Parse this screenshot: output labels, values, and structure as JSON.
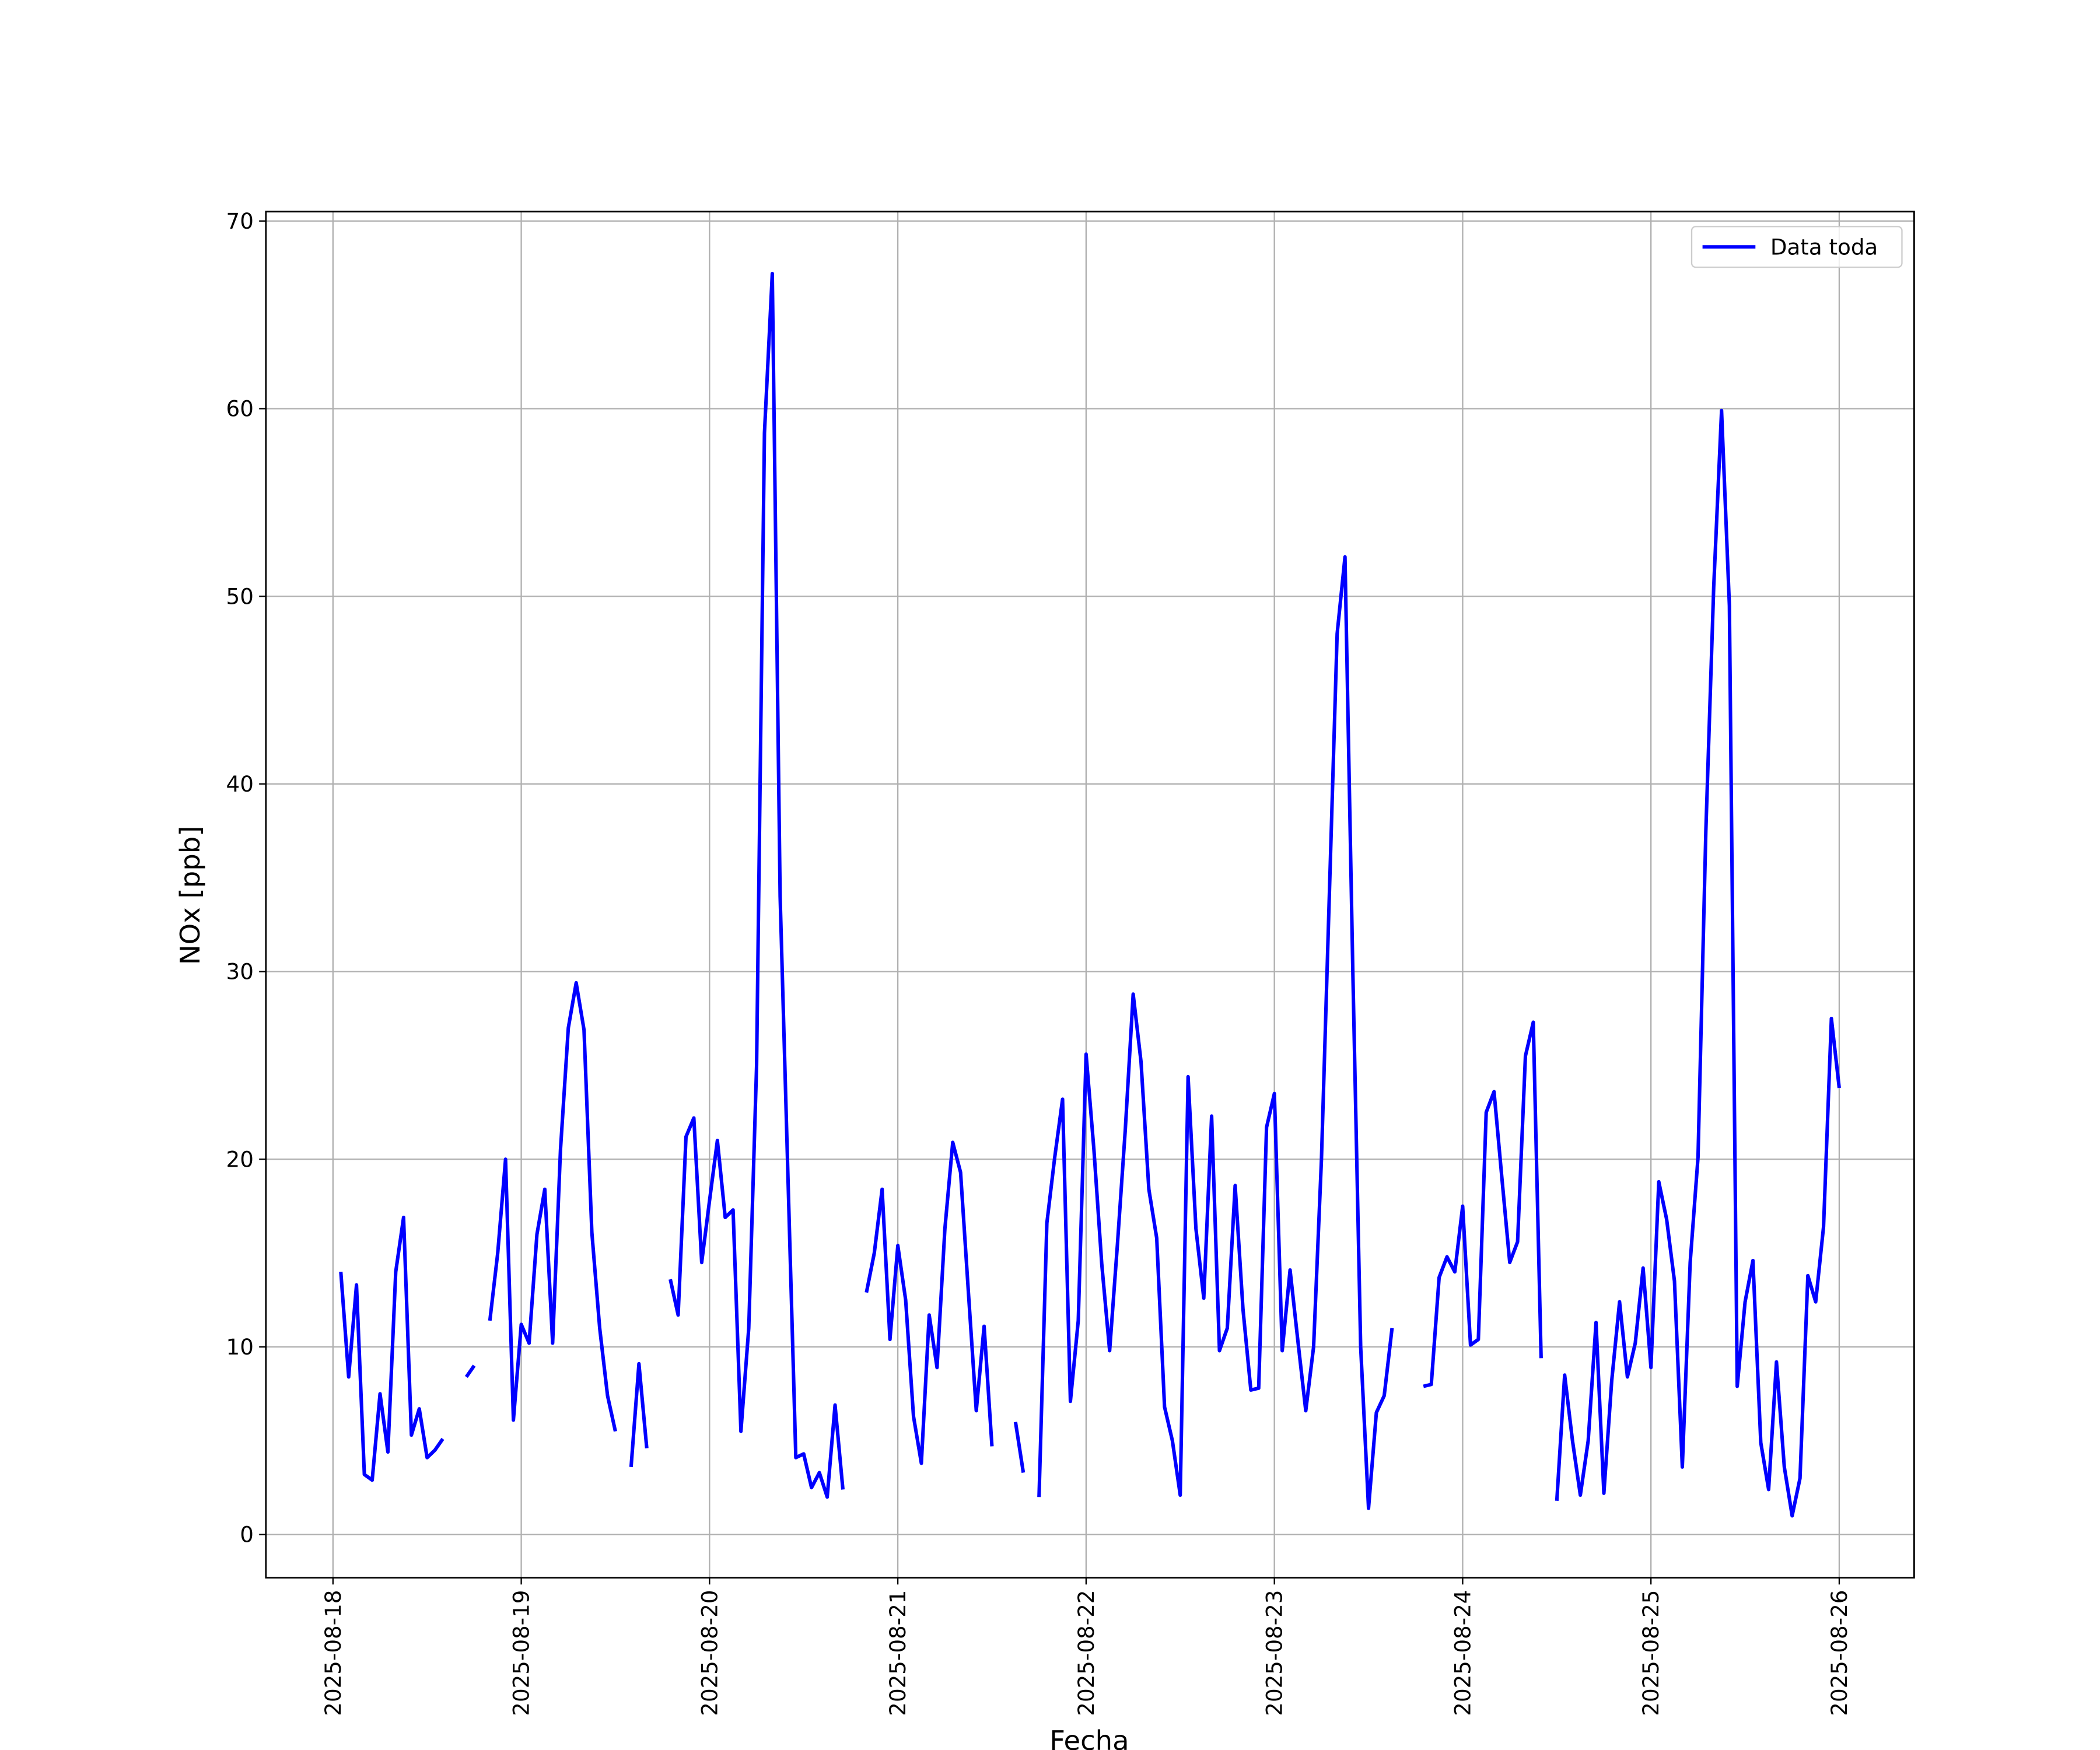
{
  "chart_data": {
    "type": "line",
    "xlabel": "Fecha",
    "ylabel": "NOx [ppb]",
    "x": [
      "2025-08-18T01:00",
      "2025-08-18T02:00",
      "2025-08-18T03:00",
      "2025-08-18T04:00",
      "2025-08-18T05:00",
      "2025-08-18T06:00",
      "2025-08-18T07:00",
      "2025-08-18T08:00",
      "2025-08-18T09:00",
      "2025-08-18T10:00",
      "2025-08-18T11:00",
      "2025-08-18T12:00",
      "2025-08-18T13:00",
      "2025-08-18T14:00",
      "2025-08-18T15:00",
      "2025-08-18T16:00",
      "2025-08-18T17:00",
      "2025-08-18T18:00",
      "2025-08-18T19:00",
      "2025-08-18T20:00",
      "2025-08-18T21:00",
      "2025-08-18T22:00",
      "2025-08-18T23:00",
      "2025-08-19T00:00",
      "2025-08-19T01:00",
      "2025-08-19T02:00",
      "2025-08-19T03:00",
      "2025-08-19T04:00",
      "2025-08-19T05:00",
      "2025-08-19T06:00",
      "2025-08-19T07:00",
      "2025-08-19T08:00",
      "2025-08-19T09:00",
      "2025-08-19T10:00",
      "2025-08-19T11:00",
      "2025-08-19T12:00",
      "2025-08-19T13:00",
      "2025-08-19T14:00",
      "2025-08-19T15:00",
      "2025-08-19T16:00",
      "2025-08-19T17:00",
      "2025-08-19T18:00",
      "2025-08-19T19:00",
      "2025-08-19T20:00",
      "2025-08-19T21:00",
      "2025-08-19T22:00",
      "2025-08-19T23:00",
      "2025-08-20T00:00",
      "2025-08-20T01:00",
      "2025-08-20T02:00",
      "2025-08-20T03:00",
      "2025-08-20T04:00",
      "2025-08-20T05:00",
      "2025-08-20T06:00",
      "2025-08-20T07:00",
      "2025-08-20T08:00",
      "2025-08-20T09:00",
      "2025-08-20T10:00",
      "2025-08-20T11:00",
      "2025-08-20T12:00",
      "2025-08-20T13:00",
      "2025-08-20T14:00",
      "2025-08-20T15:00",
      "2025-08-20T16:00",
      "2025-08-20T17:00",
      "2025-08-20T18:00",
      "2025-08-20T19:00",
      "2025-08-20T20:00",
      "2025-08-20T21:00",
      "2025-08-20T22:00",
      "2025-08-20T23:00",
      "2025-08-21T00:00",
      "2025-08-21T01:00",
      "2025-08-21T02:00",
      "2025-08-21T03:00",
      "2025-08-21T04:00",
      "2025-08-21T05:00",
      "2025-08-21T06:00",
      "2025-08-21T07:00",
      "2025-08-21T08:00",
      "2025-08-21T09:00",
      "2025-08-21T10:00",
      "2025-08-21T11:00",
      "2025-08-21T12:00",
      "2025-08-21T13:00",
      "2025-08-21T14:00",
      "2025-08-21T15:00",
      "2025-08-21T16:00",
      "2025-08-21T17:00",
      "2025-08-21T18:00",
      "2025-08-21T19:00",
      "2025-08-21T20:00",
      "2025-08-21T21:00",
      "2025-08-21T22:00",
      "2025-08-21T23:00",
      "2025-08-22T00:00",
      "2025-08-22T01:00",
      "2025-08-22T02:00",
      "2025-08-22T03:00",
      "2025-08-22T04:00",
      "2025-08-22T05:00",
      "2025-08-22T06:00",
      "2025-08-22T07:00",
      "2025-08-22T08:00",
      "2025-08-22T09:00",
      "2025-08-22T10:00",
      "2025-08-22T11:00",
      "2025-08-22T12:00",
      "2025-08-22T13:00",
      "2025-08-22T14:00",
      "2025-08-22T15:00",
      "2025-08-22T16:00",
      "2025-08-22T17:00",
      "2025-08-22T18:00",
      "2025-08-22T19:00",
      "2025-08-22T20:00",
      "2025-08-22T21:00",
      "2025-08-22T22:00",
      "2025-08-22T23:00",
      "2025-08-23T00:00",
      "2025-08-23T01:00",
      "2025-08-23T02:00",
      "2025-08-23T03:00",
      "2025-08-23T04:00",
      "2025-08-23T05:00",
      "2025-08-23T06:00",
      "2025-08-23T07:00",
      "2025-08-23T08:00",
      "2025-08-23T09:00",
      "2025-08-23T10:00",
      "2025-08-23T11:00",
      "2025-08-23T12:00",
      "2025-08-23T13:00",
      "2025-08-23T14:00",
      "2025-08-23T15:00",
      "2025-08-23T16:00",
      "2025-08-23T17:00",
      "2025-08-23T18:00",
      "2025-08-23T19:00",
      "2025-08-23T20:00",
      "2025-08-23T21:00",
      "2025-08-23T22:00",
      "2025-08-23T23:00",
      "2025-08-24T00:00",
      "2025-08-24T01:00",
      "2025-08-24T02:00",
      "2025-08-24T03:00",
      "2025-08-24T04:00",
      "2025-08-24T05:00",
      "2025-08-24T06:00",
      "2025-08-24T07:00",
      "2025-08-24T08:00",
      "2025-08-24T09:00",
      "2025-08-24T10:00",
      "2025-08-24T11:00",
      "2025-08-24T12:00",
      "2025-08-24T13:00",
      "2025-08-24T14:00",
      "2025-08-24T15:00",
      "2025-08-24T16:00",
      "2025-08-24T17:00",
      "2025-08-24T18:00",
      "2025-08-24T19:00",
      "2025-08-24T20:00",
      "2025-08-24T21:00",
      "2025-08-24T22:00",
      "2025-08-24T23:00",
      "2025-08-25T00:00",
      "2025-08-25T01:00",
      "2025-08-25T02:00",
      "2025-08-25T03:00",
      "2025-08-25T04:00",
      "2025-08-25T05:00",
      "2025-08-25T06:00",
      "2025-08-25T07:00",
      "2025-08-25T08:00",
      "2025-08-25T09:00",
      "2025-08-25T10:00",
      "2025-08-25T11:00",
      "2025-08-25T12:00",
      "2025-08-25T13:00",
      "2025-08-25T14:00",
      "2025-08-25T15:00",
      "2025-08-25T16:00",
      "2025-08-25T17:00",
      "2025-08-25T18:00",
      "2025-08-25T19:00",
      "2025-08-25T20:00",
      "2025-08-25T21:00",
      "2025-08-25T22:00",
      "2025-08-25T23:00",
      "2025-08-26T00:00"
    ],
    "series": [
      {
        "name": "Data toda",
        "color": "#0000ff",
        "values": [
          14.0,
          8.4,
          13.3,
          3.2,
          2.9,
          7.5,
          4.4,
          14.0,
          16.9,
          5.3,
          6.7,
          4.1,
          4.5,
          5.1,
          null,
          null,
          8.4,
          9.0,
          null,
          11.4,
          15.0,
          20.0,
          6.1,
          11.2,
          10.2,
          16.0,
          18.4,
          10.2,
          20.5,
          27.0,
          29.4,
          26.9,
          16.1,
          11.0,
          7.4,
          5.5,
          null,
          3.6,
          9.1,
          4.6,
          null,
          null,
          13.6,
          11.7,
          21.2,
          22.2,
          14.5,
          17.8,
          21.0,
          16.9,
          17.3,
          5.5,
          11.0,
          25.0,
          58.7,
          67.2,
          34.0,
          19.0,
          4.1,
          4.3,
          2.5,
          3.3,
          2.0,
          6.9,
          2.4,
          null,
          null,
          12.9,
          15.0,
          18.4,
          10.4,
          15.4,
          12.5,
          6.3,
          3.8,
          11.7,
          8.9,
          16.3,
          20.9,
          19.3,
          12.9,
          6.6,
          11.1,
          4.7,
          null,
          null,
          6.0,
          3.3,
          null,
          2.0,
          16.6,
          20.1,
          23.2,
          7.1,
          11.4,
          25.6,
          20.5,
          14.4,
          9.8,
          15.5,
          21.6,
          28.8,
          25.2,
          18.4,
          15.8,
          6.8,
          5.0,
          2.1,
          24.4,
          16.3,
          12.6,
          22.3,
          9.8,
          11.0,
          18.6,
          12.0,
          7.7,
          7.8,
          21.7,
          23.5,
          9.8,
          14.1,
          10.3,
          6.6,
          10.0,
          20.0,
          34.0,
          48.0,
          52.1,
          30.0,
          10.0,
          1.4,
          6.5,
          7.4,
          11.0,
          null,
          null,
          null,
          7.9,
          8.0,
          13.7,
          14.8,
          14.0,
          17.5,
          10.1,
          10.4,
          22.5,
          23.6,
          19.0,
          14.5,
          15.6,
          25.5,
          27.3,
          9.4,
          null,
          1.8,
          8.5,
          5.0,
          2.1,
          5.0,
          11.3,
          2.2,
          8.2,
          12.4,
          8.4,
          10.2,
          14.2,
          8.9,
          18.8,
          16.8,
          13.5,
          3.6,
          14.5,
          20.1,
          37.5,
          50.5,
          59.9,
          49.5,
          7.9,
          12.4,
          14.6,
          4.9,
          2.4,
          9.2,
          3.6,
          1.0,
          3.0,
          13.8,
          12.4,
          16.4,
          27.5,
          23.8
        ]
      }
    ],
    "xlim": [
      "2025-08-17T15:27",
      "2025-08-26T09:33"
    ],
    "xticks": [
      "2025-08-18",
      "2025-08-19",
      "2025-08-20",
      "2025-08-21",
      "2025-08-22",
      "2025-08-23",
      "2025-08-24",
      "2025-08-25",
      "2025-08-26"
    ],
    "ylim": [
      -2.3,
      70.5
    ],
    "yticks": [
      0,
      10,
      20,
      30,
      40,
      50,
      60,
      70
    ],
    "grid": true,
    "legend": "upper right"
  }
}
